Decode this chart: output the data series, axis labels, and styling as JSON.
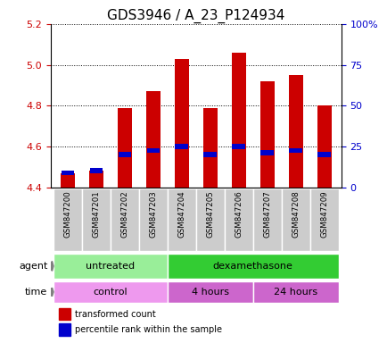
{
  "title": "GDS3946 / A_23_P124934",
  "samples": [
    "GSM847200",
    "GSM847201",
    "GSM847202",
    "GSM847203",
    "GSM847204",
    "GSM847205",
    "GSM847206",
    "GSM847207",
    "GSM847208",
    "GSM847209"
  ],
  "transformed_count": [
    4.47,
    4.48,
    4.79,
    4.87,
    5.03,
    4.79,
    5.06,
    4.92,
    4.95,
    4.8
  ],
  "percentile_rank_pct": [
    4.47,
    4.48,
    4.56,
    4.58,
    4.6,
    4.56,
    4.6,
    4.57,
    4.58,
    4.56
  ],
  "bar_bottom": 4.4,
  "ylim": [
    4.4,
    5.2
  ],
  "right_ylim": [
    0,
    100
  ],
  "right_yticks": [
    0,
    25,
    50,
    75,
    100
  ],
  "right_yticklabels": [
    "0",
    "25",
    "50",
    "75",
    "100%"
  ],
  "left_yticks": [
    4.4,
    4.6,
    4.8,
    5.0,
    5.2
  ],
  "red_color": "#cc0000",
  "blue_color": "#0000cc",
  "agent_labels": [
    {
      "text": "untreated",
      "start": 0,
      "end": 4,
      "color": "#99ee99"
    },
    {
      "text": "dexamethasone",
      "start": 4,
      "end": 10,
      "color": "#33cc33"
    }
  ],
  "time_labels": [
    {
      "text": "control",
      "start": 0,
      "end": 4,
      "color": "#ee99ee"
    },
    {
      "text": "4 hours",
      "start": 4,
      "end": 7,
      "color": "#cc66cc"
    },
    {
      "text": "24 hours",
      "start": 7,
      "end": 10,
      "color": "#cc66cc"
    }
  ],
  "sample_bg_color": "#cccccc",
  "legend_red": "transformed count",
  "legend_blue": "percentile rank within the sample",
  "bar_width": 0.5,
  "grid_color": "#000000",
  "left_label_color": "#cc0000",
  "right_label_color": "#0000cc",
  "title_fontsize": 11,
  "tick_fontsize": 7,
  "label_fontsize": 8,
  "annotation_fontsize": 8
}
